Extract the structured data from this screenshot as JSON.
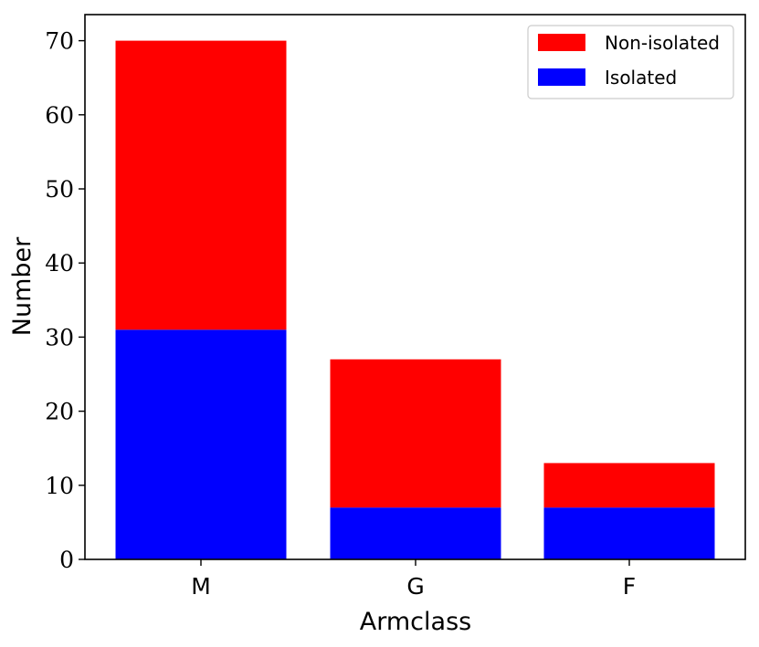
{
  "chart_data": {
    "type": "bar",
    "stacked": true,
    "categories": [
      "M",
      "G",
      "F"
    ],
    "series": [
      {
        "name": "Isolated",
        "values": [
          31,
          7,
          7
        ],
        "color": "#0000ff"
      },
      {
        "name": "Non-isolated",
        "values": [
          39,
          20,
          6
        ],
        "color": "#ff0000"
      }
    ],
    "totals": [
      70,
      27,
      13
    ],
    "xlabel": "Armclass",
    "ylabel": "Number",
    "ylim": [
      0,
      73.5
    ],
    "yticks": [
      "0",
      "10",
      "20",
      "30",
      "40",
      "50",
      "60",
      "70"
    ],
    "grid": false,
    "legend": {
      "position": "top-right",
      "entries": [
        "Non-isolated",
        "Isolated"
      ]
    }
  }
}
